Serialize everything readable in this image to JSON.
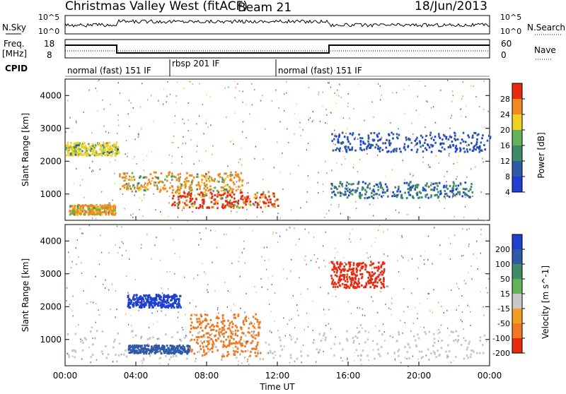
{
  "header": {
    "station": "Christmas Valley West (fitACF)",
    "beam": "Beam 21",
    "date": "18/Jun/2013"
  },
  "noise_panel": {
    "left_label": "N.Sky",
    "right_label": "N.Search",
    "y_ticks": [
      "10^5",
      "10^0"
    ]
  },
  "freq_panel": {
    "left_label_1": "Freq.",
    "left_label_2": "[MHz]",
    "right_label": "Nave",
    "left_ticks": [
      "18",
      "8"
    ],
    "right_ticks": [
      "60",
      "0"
    ]
  },
  "cpid_panel": {
    "label": "CPID",
    "segments": [
      "normal (fast) 151 IF",
      "rbsp 201 IF",
      "normal (fast) 151 IF"
    ]
  },
  "chart_data": [
    {
      "type": "heatmap",
      "title": "Power",
      "ylabel": "Slant Range [km]",
      "xlabel": "Time UT",
      "x_ticks": [
        "00:00",
        "04:00",
        "08:00",
        "12:00",
        "16:00",
        "20:00",
        "00:00"
      ],
      "y_ticks": [
        1000,
        2000,
        3000,
        4000
      ],
      "ylim": [
        200,
        4500
      ],
      "xlim_hours": [
        0,
        24
      ],
      "colorbar": {
        "label": "Power [dB]",
        "ticks": [
          4,
          8,
          12,
          16,
          20,
          24,
          28
        ],
        "colors": [
          "#1f3fd0",
          "#2f5aa8",
          "#3f8a68",
          "#63b25a",
          "#f0d020",
          "#f08a20",
          "#e82a10"
        ]
      },
      "features": [
        {
          "name": "near-range red echo",
          "hours": [
            0.2,
            2.8
          ],
          "range_km": [
            400,
            700
          ],
          "dB": 24
        },
        {
          "name": "morning band",
          "hours": [
            0,
            3
          ],
          "range_km": [
            2200,
            2600
          ],
          "dB": 22
        },
        {
          "name": "daytime main echo",
          "hours": [
            6,
            12
          ],
          "range_km": [
            600,
            1100
          ],
          "dB": 28
        },
        {
          "name": "mid echo",
          "hours": [
            3,
            10
          ],
          "range_km": [
            1100,
            1700
          ],
          "dB": 24
        },
        {
          "name": "afternoon band",
          "hours": [
            15,
            23
          ],
          "range_km": [
            900,
            1400
          ],
          "dB": 14
        },
        {
          "name": "evening upper band",
          "hours": [
            15,
            24
          ],
          "range_km": [
            2300,
            2900
          ],
          "dB": 10
        }
      ]
    },
    {
      "type": "heatmap",
      "title": "Velocity",
      "ylabel": "Slant Range [km]",
      "xlabel": "Time UT",
      "x_ticks": [
        "00:00",
        "04:00",
        "08:00",
        "12:00",
        "16:00",
        "20:00",
        "00:00"
      ],
      "y_ticks": [
        1000,
        2000,
        3000,
        4000
      ],
      "ylim": [
        200,
        4500
      ],
      "xlim_hours": [
        0,
        24
      ],
      "colorbar": {
        "label": "Velocity [m s^-1]",
        "ticks": [
          200,
          100,
          50,
          15,
          -15,
          -50,
          -100,
          -200
        ],
        "colors": [
          "#1f3fd0",
          "#2f5aa8",
          "#3f8a68",
          "#63b25a",
          "#c8c8c8",
          "#f0a020",
          "#f07820",
          "#e82a10"
        ]
      },
      "features": [
        {
          "name": "ground scatter",
          "hours": [
            0,
            24
          ],
          "range_km": [
            400,
            1300
          ],
          "vel": 0
        },
        {
          "name": "positive flow",
          "hours": [
            3.5,
            7
          ],
          "range_km": [
            600,
            850
          ],
          "vel": 80
        },
        {
          "name": "negative flow",
          "hours": [
            7,
            11
          ],
          "range_km": [
            500,
            1800
          ],
          "vel": -60
        },
        {
          "name": "evening negative",
          "hours": [
            15,
            18
          ],
          "range_km": [
            2600,
            3400
          ],
          "vel": -200
        },
        {
          "name": "upper positive",
          "hours": [
            3.5,
            6.5
          ],
          "range_km": [
            2000,
            2400
          ],
          "vel": 150
        }
      ]
    }
  ]
}
